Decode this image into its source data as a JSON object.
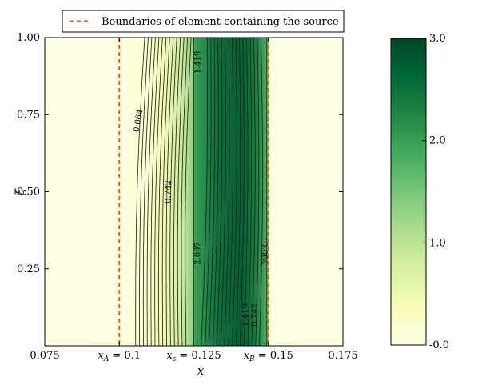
{
  "chart_data": {
    "type": "heatmap",
    "title": "",
    "xlabel": "x",
    "ylabel": "ξ",
    "xlim": [
      0.075,
      0.175
    ],
    "ylim": [
      0.0,
      1.0
    ],
    "x_ticks": [
      {
        "value": 0.075,
        "label": "0.075"
      },
      {
        "value": 0.1,
        "label": "x_A = 0.1",
        "sym": "x",
        "sub": "A",
        "num": "= 0.1"
      },
      {
        "value": 0.125,
        "label": "x_s = 0.125",
        "sym": "x",
        "sub": "s",
        "num": "= 0.125"
      },
      {
        "value": 0.15,
        "label": "x_B = 0.15",
        "sym": "x",
        "sub": "B",
        "num": "= 0.15"
      },
      {
        "value": 0.175,
        "label": "0.175"
      }
    ],
    "y_ticks": [
      {
        "value": 0.25,
        "label": "0.25"
      },
      {
        "value": 0.5,
        "label": "0.50"
      },
      {
        "value": 0.75,
        "label": "0.75"
      },
      {
        "value": 1.0,
        "label": "1.00"
      }
    ],
    "colorbar": {
      "min": 0.0,
      "max": 3.0,
      "ticks": [
        {
          "value": 3.0,
          "label": "3.0"
        },
        {
          "value": 2.0,
          "label": "2.0"
        },
        {
          "value": 1.0,
          "label": "1.0"
        },
        {
          "value": 0.0,
          "label": "-0.0"
        }
      ],
      "colormap": [
        "#ffffe5",
        "#f7fcb9",
        "#d9f0a3",
        "#addd8e",
        "#78c679",
        "#41ab5d",
        "#238443",
        "#006837",
        "#004529"
      ]
    },
    "legend": {
      "location": "top",
      "entries": [
        {
          "label": "Boundaries of element containing the source",
          "style": "dashed",
          "color": "#e8601c"
        }
      ]
    },
    "boundaries": [
      0.1,
      0.15
    ],
    "source_x": 0.125,
    "contour_labels": [
      {
        "text": "0.064",
        "x": 0.1065,
        "y": 0.73,
        "rotate": -80
      },
      {
        "text": "0.742",
        "x": 0.1165,
        "y": 0.5,
        "rotate": -90
      },
      {
        "text": "1.419",
        "x": 0.1265,
        "y": 0.92,
        "rotate": -90
      },
      {
        "text": "2.097",
        "x": 0.1265,
        "y": 0.3,
        "rotate": -90
      },
      {
        "text": "1.419",
        "x": 0.1425,
        "y": 0.1,
        "rotate": -90
      },
      {
        "text": "0.742",
        "x": 0.1455,
        "y": 0.1,
        "rotate": -90
      },
      {
        "text": "0.064",
        "x": 0.1485,
        "y": 0.3,
        "rotate": 90
      }
    ]
  }
}
